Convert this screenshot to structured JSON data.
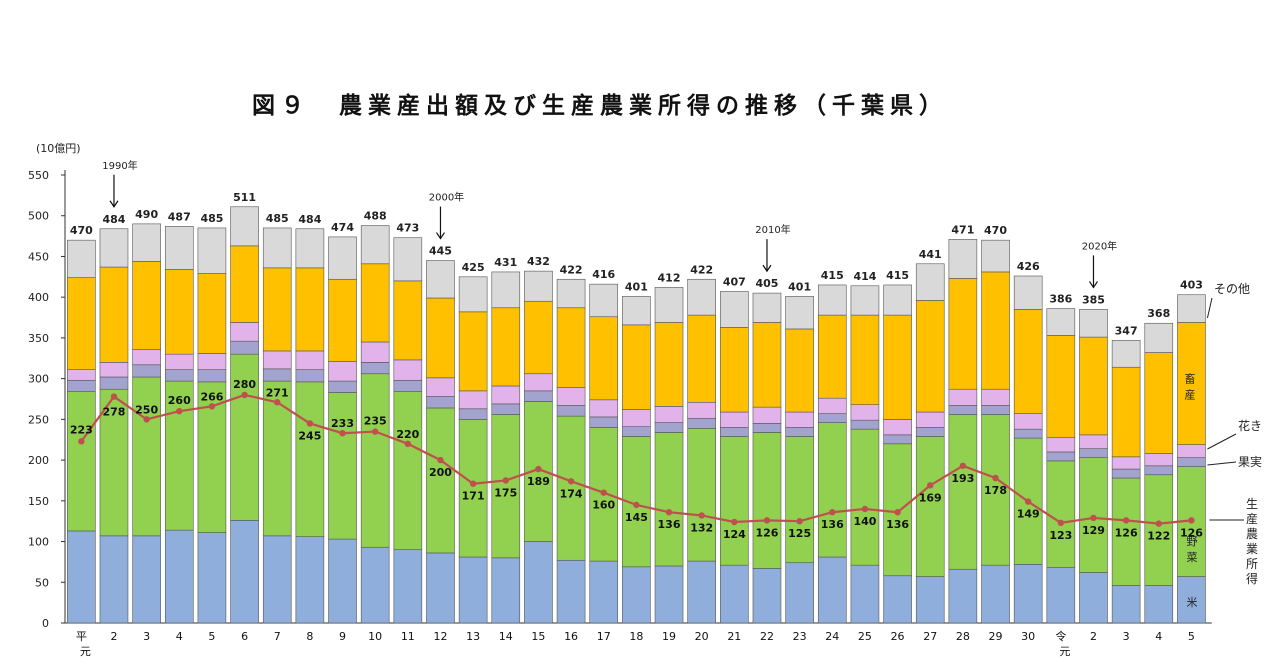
{
  "chart_data": {
    "type": "bar",
    "title": "図９　農業産出額及び生産農業所得の推移（千葉県）",
    "ylabel": "(10億円)",
    "ylim": [
      0,
      550
    ],
    "yticks": [
      0,
      50,
      100,
      150,
      200,
      250,
      300,
      350,
      400,
      450,
      500,
      550
    ],
    "categories": [
      "平.元",
      "2",
      "3",
      "4",
      "5",
      "6",
      "7",
      "8",
      "9",
      "10",
      "11",
      "12",
      "13",
      "14",
      "15",
      "16",
      "17",
      "18",
      "19",
      "20",
      "21",
      "22",
      "23",
      "24",
      "25",
      "26",
      "27",
      "28",
      "29",
      "30",
      "令.元",
      "2",
      "3",
      "4",
      "5"
    ],
    "totals": [
      470,
      484,
      490,
      487,
      485,
      511,
      485,
      484,
      474,
      488,
      473,
      445,
      425,
      431,
      432,
      422,
      416,
      401,
      412,
      422,
      407,
      405,
      401,
      415,
      414,
      415,
      441,
      471,
      470,
      426,
      386,
      385,
      347,
      368,
      403
    ],
    "series": [
      {
        "name": "米",
        "color": "#8faedc",
        "values": [
          113,
          107,
          107,
          114,
          111,
          126,
          107,
          106,
          103,
          93,
          90,
          86,
          81,
          80,
          100,
          77,
          76,
          69,
          70,
          76,
          71,
          67,
          74,
          81,
          71,
          58,
          57,
          66,
          71,
          72,
          68,
          62,
          46,
          46,
          57
        ]
      },
      {
        "name": "野菜",
        "color": "#92d050",
        "values": [
          171,
          180,
          195,
          183,
          185,
          204,
          190,
          190,
          180,
          213,
          194,
          178,
          169,
          176,
          172,
          177,
          164,
          160,
          164,
          163,
          158,
          167,
          155,
          165,
          167,
          162,
          172,
          190,
          185,
          155,
          131,
          141,
          132,
          136,
          135
        ]
      },
      {
        "name": "果実",
        "color": "#a3a3cf",
        "values": [
          14,
          15,
          15,
          14,
          15,
          16,
          15,
          15,
          14,
          14,
          14,
          14,
          13,
          13,
          13,
          13,
          13,
          12,
          12,
          12,
          11,
          11,
          11,
          11,
          11,
          11,
          11,
          11,
          11,
          11,
          11,
          11,
          11,
          11,
          11
        ]
      },
      {
        "name": "花き",
        "color": "#e2b3ea",
        "values": [
          13,
          18,
          19,
          19,
          20,
          23,
          22,
          23,
          24,
          25,
          25,
          23,
          22,
          22,
          21,
          22,
          21,
          21,
          20,
          20,
          19,
          20,
          19,
          19,
          19,
          19,
          19,
          20,
          20,
          19,
          18,
          17,
          15,
          15,
          16
        ]
      },
      {
        "name": "畜産",
        "color": "#ffc000",
        "values": [
          113,
          117,
          108,
          104,
          98,
          94,
          102,
          102,
          101,
          96,
          97,
          98,
          97,
          96,
          89,
          98,
          102,
          104,
          103,
          107,
          104,
          104,
          102,
          102,
          110,
          128,
          137,
          136,
          144,
          128,
          125,
          120,
          110,
          124,
          150
        ]
      },
      {
        "name": "その他",
        "color": "#d9d9d9",
        "values": [
          46,
          47,
          46,
          53,
          56,
          48,
          49,
          48,
          52,
          47,
          53,
          46,
          43,
          44,
          37,
          35,
          40,
          35,
          43,
          44,
          44,
          36,
          40,
          37,
          36,
          37,
          45,
          48,
          39,
          41,
          33,
          34,
          33,
          36,
          34
        ]
      }
    ],
    "line": {
      "name": "生産農業所得",
      "color": "#c0504d",
      "values": [
        223,
        278,
        250,
        260,
        266,
        280,
        271,
        245,
        233,
        235,
        220,
        200,
        171,
        175,
        189,
        174,
        160,
        145,
        136,
        132,
        124,
        126,
        125,
        136,
        140,
        136,
        169,
        193,
        178,
        149,
        123,
        129,
        126,
        122,
        126
      ]
    },
    "annotations": [
      {
        "text": "1990年",
        "index": 1
      },
      {
        "text": "2000年",
        "index": 11
      },
      {
        "text": "2010年",
        "index": 21
      },
      {
        "text": "2020年",
        "index": 31
      }
    ],
    "legend": {
      "outside": [
        "その他",
        "畜産",
        "花き",
        "果実",
        "生産農業所得",
        "野菜",
        "米"
      ]
    }
  }
}
